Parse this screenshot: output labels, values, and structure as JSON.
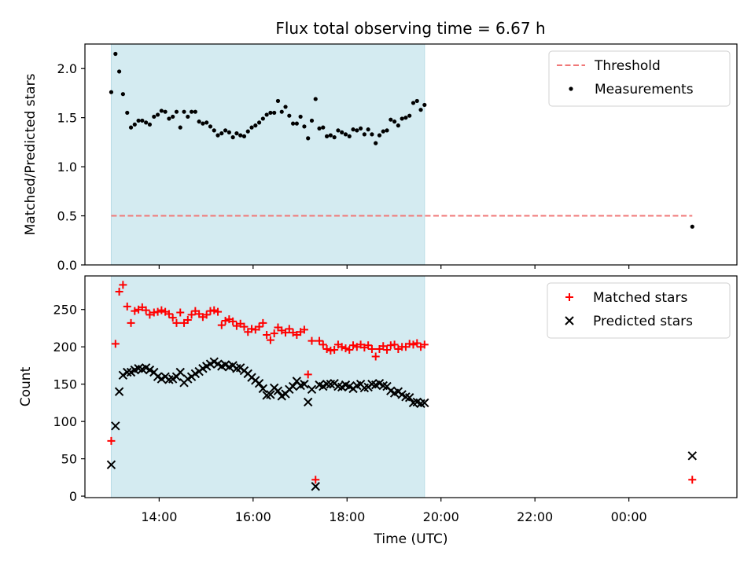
{
  "chart_data": [
    {
      "type": "scatter",
      "title": "Flux total observing time = 6.67 h",
      "ylabel": "Matched/Predicted stars",
      "xlim": [
        12.42,
        26.3
      ],
      "ylim": [
        0,
        2.25
      ],
      "yticks": [
        0.0,
        0.5,
        1.0,
        1.5,
        2.0
      ],
      "ytick_labels": [
        "0.0",
        "0.5",
        "1.0",
        "1.5",
        "2.0"
      ],
      "shaded_span": {
        "x0": 12.98,
        "x1": 19.65,
        "color": "#d4ebf1"
      },
      "legend_position": "top-right",
      "threshold": {
        "name": "Threshold",
        "value": 0.5,
        "x0": 12.98,
        "x1": 25.35,
        "color": "#f07878"
      },
      "series": [
        {
          "name": "Measurements",
          "color": "#000000",
          "marker": "dot",
          "points": [
            [
              12.98,
              1.76
            ],
            [
              13.07,
              2.15
            ],
            [
              13.15,
              1.97
            ],
            [
              13.23,
              1.74
            ],
            [
              13.32,
              1.55
            ],
            [
              13.4,
              1.4
            ],
            [
              13.48,
              1.43
            ],
            [
              13.56,
              1.47
            ],
            [
              13.64,
              1.47
            ],
            [
              13.72,
              1.45
            ],
            [
              13.8,
              1.43
            ],
            [
              13.89,
              1.51
            ],
            [
              13.97,
              1.53
            ],
            [
              14.05,
              1.57
            ],
            [
              14.13,
              1.56
            ],
            [
              14.21,
              1.49
            ],
            [
              14.29,
              1.51
            ],
            [
              14.37,
              1.56
            ],
            [
              14.45,
              1.4
            ],
            [
              14.53,
              1.56
            ],
            [
              14.61,
              1.51
            ],
            [
              14.69,
              1.56
            ],
            [
              14.77,
              1.56
            ],
            [
              14.85,
              1.46
            ],
            [
              14.93,
              1.44
            ],
            [
              15.01,
              1.45
            ],
            [
              15.09,
              1.41
            ],
            [
              15.17,
              1.37
            ],
            [
              15.25,
              1.32
            ],
            [
              15.33,
              1.34
            ],
            [
              15.41,
              1.37
            ],
            [
              15.49,
              1.35
            ],
            [
              15.57,
              1.3
            ],
            [
              15.65,
              1.34
            ],
            [
              15.73,
              1.32
            ],
            [
              15.81,
              1.31
            ],
            [
              15.89,
              1.36
            ],
            [
              15.97,
              1.4
            ],
            [
              16.05,
              1.42
            ],
            [
              16.13,
              1.45
            ],
            [
              16.21,
              1.49
            ],
            [
              16.29,
              1.53
            ],
            [
              16.37,
              1.55
            ],
            [
              16.45,
              1.55
            ],
            [
              16.53,
              1.67
            ],
            [
              16.61,
              1.56
            ],
            [
              16.69,
              1.61
            ],
            [
              16.77,
              1.52
            ],
            [
              16.85,
              1.44
            ],
            [
              16.93,
              1.44
            ],
            [
              17.01,
              1.51
            ],
            [
              17.09,
              1.41
            ],
            [
              17.17,
              1.29
            ],
            [
              17.25,
              1.47
            ],
            [
              17.33,
              1.69
            ],
            [
              17.41,
              1.39
            ],
            [
              17.49,
              1.4
            ],
            [
              17.57,
              1.31
            ],
            [
              17.65,
              1.32
            ],
            [
              17.73,
              1.3
            ],
            [
              17.81,
              1.37
            ],
            [
              17.89,
              1.35
            ],
            [
              17.97,
              1.33
            ],
            [
              18.05,
              1.31
            ],
            [
              18.13,
              1.38
            ],
            [
              18.21,
              1.37
            ],
            [
              18.29,
              1.39
            ],
            [
              18.37,
              1.33
            ],
            [
              18.45,
              1.38
            ],
            [
              18.53,
              1.33
            ],
            [
              18.61,
              1.24
            ],
            [
              18.69,
              1.32
            ],
            [
              18.77,
              1.36
            ],
            [
              18.85,
              1.37
            ],
            [
              18.93,
              1.48
            ],
            [
              19.01,
              1.46
            ],
            [
              19.09,
              1.42
            ],
            [
              19.17,
              1.49
            ],
            [
              19.25,
              1.5
            ],
            [
              19.33,
              1.52
            ],
            [
              19.41,
              1.65
            ],
            [
              19.49,
              1.67
            ],
            [
              19.57,
              1.58
            ],
            [
              19.65,
              1.63
            ],
            [
              25.35,
              0.39
            ]
          ]
        }
      ]
    },
    {
      "type": "scatter",
      "xlabel": "Time (UTC)",
      "ylabel": "Count",
      "xlim": [
        12.42,
        26.3
      ],
      "ylim": [
        -2,
        295
      ],
      "yticks": [
        0,
        50,
        100,
        150,
        200,
        250
      ],
      "ytick_labels": [
        "0",
        "50",
        "100",
        "150",
        "200",
        "250"
      ],
      "xticks": [
        14,
        16,
        18,
        20,
        22,
        24
      ],
      "xtick_labels": [
        "14:00",
        "16:00",
        "18:00",
        "20:00",
        "22:00",
        "00:00"
      ],
      "shaded_span": {
        "x0": 12.98,
        "x1": 19.65,
        "color": "#d4ebf1"
      },
      "legend_position": "top-right",
      "series": [
        {
          "name": "Matched stars",
          "color": "#ff0000",
          "marker": "plus",
          "points": [
            [
              12.98,
              74
            ],
            [
              13.07,
              204
            ],
            [
              13.15,
              274
            ],
            [
              13.23,
              283
            ],
            [
              13.32,
              254
            ],
            [
              13.4,
              232
            ],
            [
              13.48,
              248
            ],
            [
              13.56,
              250
            ],
            [
              13.64,
              253
            ],
            [
              13.72,
              249
            ],
            [
              13.8,
              243
            ],
            [
              13.89,
              246
            ],
            [
              13.97,
              247
            ],
            [
              14.05,
              249
            ],
            [
              14.13,
              247
            ],
            [
              14.21,
              244
            ],
            [
              14.29,
              239
            ],
            [
              14.37,
              232
            ],
            [
              14.45,
              246
            ],
            [
              14.53,
              232
            ],
            [
              14.61,
              236
            ],
            [
              14.69,
              243
            ],
            [
              14.77,
              248
            ],
            [
              14.85,
              244
            ],
            [
              14.93,
              240
            ],
            [
              15.01,
              243
            ],
            [
              15.09,
              248
            ],
            [
              15.17,
              249
            ],
            [
              15.25,
              247
            ],
            [
              15.33,
              229
            ],
            [
              15.41,
              235
            ],
            [
              15.49,
              237
            ],
            [
              15.57,
              234
            ],
            [
              15.65,
              228
            ],
            [
              15.73,
              231
            ],
            [
              15.81,
              227
            ],
            [
              15.89,
              220
            ],
            [
              15.97,
              224
            ],
            [
              16.05,
              223
            ],
            [
              16.13,
              227
            ],
            [
              16.21,
              232
            ],
            [
              16.29,
              216
            ],
            [
              16.37,
              209
            ],
            [
              16.45,
              218
            ],
            [
              16.53,
              226
            ],
            [
              16.61,
              222
            ],
            [
              16.69,
              219
            ],
            [
              16.77,
              224
            ],
            [
              16.85,
              219
            ],
            [
              16.93,
              216
            ],
            [
              17.01,
              220
            ],
            [
              17.09,
              223
            ],
            [
              17.17,
              163
            ],
            [
              17.25,
              208
            ],
            [
              17.33,
              22
            ],
            [
              17.41,
              208
            ],
            [
              17.49,
              203
            ],
            [
              17.57,
              197
            ],
            [
              17.65,
              195
            ],
            [
              17.73,
              196
            ],
            [
              17.81,
              203
            ],
            [
              17.89,
              200
            ],
            [
              17.97,
              198
            ],
            [
              18.05,
              196
            ],
            [
              18.13,
              202
            ],
            [
              18.21,
              200
            ],
            [
              18.29,
              203
            ],
            [
              18.37,
              199
            ],
            [
              18.45,
              202
            ],
            [
              18.53,
              197
            ],
            [
              18.61,
              187
            ],
            [
              18.69,
              197
            ],
            [
              18.77,
              201
            ],
            [
              18.85,
              196
            ],
            [
              18.93,
              202
            ],
            [
              19.01,
              203
            ],
            [
              19.09,
              197
            ],
            [
              19.17,
              200
            ],
            [
              19.25,
              200
            ],
            [
              19.33,
              204
            ],
            [
              19.41,
              203
            ],
            [
              19.49,
              205
            ],
            [
              19.57,
              200
            ],
            [
              19.65,
              203
            ],
            [
              25.35,
              22
            ]
          ]
        },
        {
          "name": "Predicted stars",
          "color": "#000000",
          "marker": "x",
          "points": [
            [
              12.98,
              42
            ],
            [
              13.07,
              94
            ],
            [
              13.15,
              140
            ],
            [
              13.23,
              162
            ],
            [
              13.32,
              166
            ],
            [
              13.4,
              166
            ],
            [
              13.48,
              169
            ],
            [
              13.56,
              171
            ],
            [
              13.64,
              170
            ],
            [
              13.72,
              172
            ],
            [
              13.8,
              169
            ],
            [
              13.89,
              166
            ],
            [
              13.97,
              160
            ],
            [
              14.05,
              157
            ],
            [
              14.13,
              160
            ],
            [
              14.21,
              156
            ],
            [
              14.29,
              157
            ],
            [
              14.37,
              160
            ],
            [
              14.45,
              166
            ],
            [
              14.53,
              152
            ],
            [
              14.61,
              157
            ],
            [
              14.69,
              160
            ],
            [
              14.77,
              164
            ],
            [
              14.85,
              167
            ],
            [
              14.93,
              171
            ],
            [
              15.01,
              174
            ],
            [
              15.09,
              177
            ],
            [
              15.17,
              180
            ],
            [
              15.25,
              177
            ],
            [
              15.33,
              174
            ],
            [
              15.41,
              176
            ],
            [
              15.49,
              173
            ],
            [
              15.57,
              175
            ],
            [
              15.65,
              171
            ],
            [
              15.73,
              172
            ],
            [
              15.81,
              168
            ],
            [
              15.89,
              164
            ],
            [
              15.97,
              159
            ],
            [
              16.05,
              155
            ],
            [
              16.13,
              151
            ],
            [
              16.21,
              144
            ],
            [
              16.29,
              135
            ],
            [
              16.37,
              136
            ],
            [
              16.45,
              145
            ],
            [
              16.53,
              141
            ],
            [
              16.61,
              134
            ],
            [
              16.69,
              137
            ],
            [
              16.77,
              143
            ],
            [
              16.85,
              147
            ],
            [
              16.93,
              154
            ],
            [
              17.01,
              148
            ],
            [
              17.09,
              150
            ],
            [
              17.17,
              126
            ],
            [
              17.25,
              143
            ],
            [
              17.33,
              13
            ],
            [
              17.41,
              149
            ],
            [
              17.49,
              147
            ],
            [
              17.57,
              150
            ],
            [
              17.65,
              150
            ],
            [
              17.73,
              151
            ],
            [
              17.81,
              147
            ],
            [
              17.89,
              146
            ],
            [
              17.97,
              149
            ],
            [
              18.05,
              147
            ],
            [
              18.13,
              144
            ],
            [
              18.21,
              148
            ],
            [
              18.29,
              150
            ],
            [
              18.37,
              145
            ],
            [
              18.45,
              146
            ],
            [
              18.53,
              150
            ],
            [
              18.61,
              149
            ],
            [
              18.69,
              151
            ],
            [
              18.77,
              148
            ],
            [
              18.85,
              147
            ],
            [
              18.93,
              141
            ],
            [
              19.01,
              138
            ],
            [
              19.09,
              140
            ],
            [
              19.17,
              136
            ],
            [
              19.25,
              133
            ],
            [
              19.33,
              132
            ],
            [
              19.41,
              125
            ],
            [
              19.49,
              126
            ],
            [
              19.57,
              124
            ],
            [
              19.65,
              125
            ],
            [
              25.35,
              54
            ]
          ]
        }
      ]
    }
  ]
}
